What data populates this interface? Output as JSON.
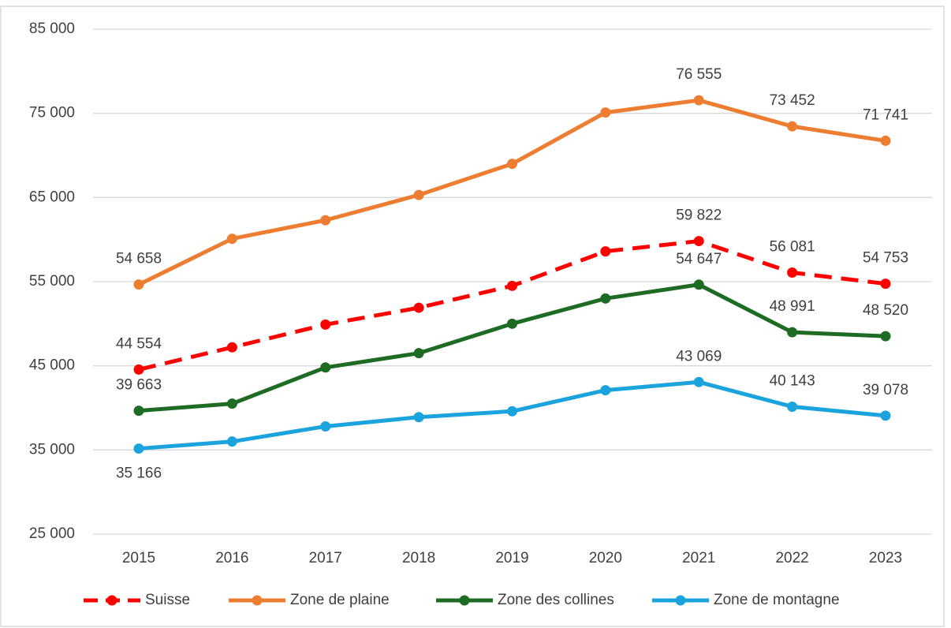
{
  "chart_data": {
    "type": "line",
    "categories": [
      "2015",
      "2016",
      "2017",
      "2018",
      "2019",
      "2020",
      "2021",
      "2022",
      "2023"
    ],
    "series": [
      {
        "name": "Suisse",
        "color": "#ff0000",
        "dashed": true,
        "values": [
          44554,
          47200,
          49900,
          51900,
          54500,
          58600,
          59822,
          56081,
          54753
        ],
        "value_labels": [
          "44 554",
          null,
          null,
          null,
          null,
          null,
          "59 822",
          "56 081",
          "54 753"
        ]
      },
      {
        "name": "Zone de plaine",
        "color": "#ed7d31",
        "values": [
          54658,
          60100,
          62300,
          65300,
          69000,
          75100,
          76555,
          73452,
          71741
        ],
        "value_labels": [
          "54 658",
          null,
          null,
          null,
          null,
          null,
          "76 555",
          "73 452",
          "71 741"
        ]
      },
      {
        "name": "Zone des collines",
        "color": "#1e6b24",
        "values": [
          39663,
          40500,
          44800,
          46500,
          50000,
          53000,
          54647,
          48991,
          48520
        ],
        "value_labels": [
          "39 663",
          null,
          null,
          null,
          null,
          null,
          "54 647",
          "48 991",
          "48 520"
        ]
      },
      {
        "name": "Zone de montagne",
        "color": "#1aa3dc",
        "values": [
          35166,
          36000,
          37800,
          38900,
          39600,
          42100,
          43069,
          40143,
          39078
        ],
        "value_labels": [
          "35 166",
          null,
          null,
          null,
          null,
          null,
          "43 069",
          "40 143",
          "39 078"
        ]
      }
    ],
    "ylim": [
      25000,
      85000
    ],
    "yticks": [
      {
        "value": 25000,
        "label": "25 000"
      },
      {
        "value": 35000,
        "label": "35 000"
      },
      {
        "value": 45000,
        "label": "45 000"
      },
      {
        "value": 55000,
        "label": "55 000"
      },
      {
        "value": 65000,
        "label": "65 000"
      },
      {
        "value": 75000,
        "label": "75 000"
      },
      {
        "value": 85000,
        "label": "85 000"
      }
    ],
    "grid": true,
    "legend": "bottom"
  }
}
